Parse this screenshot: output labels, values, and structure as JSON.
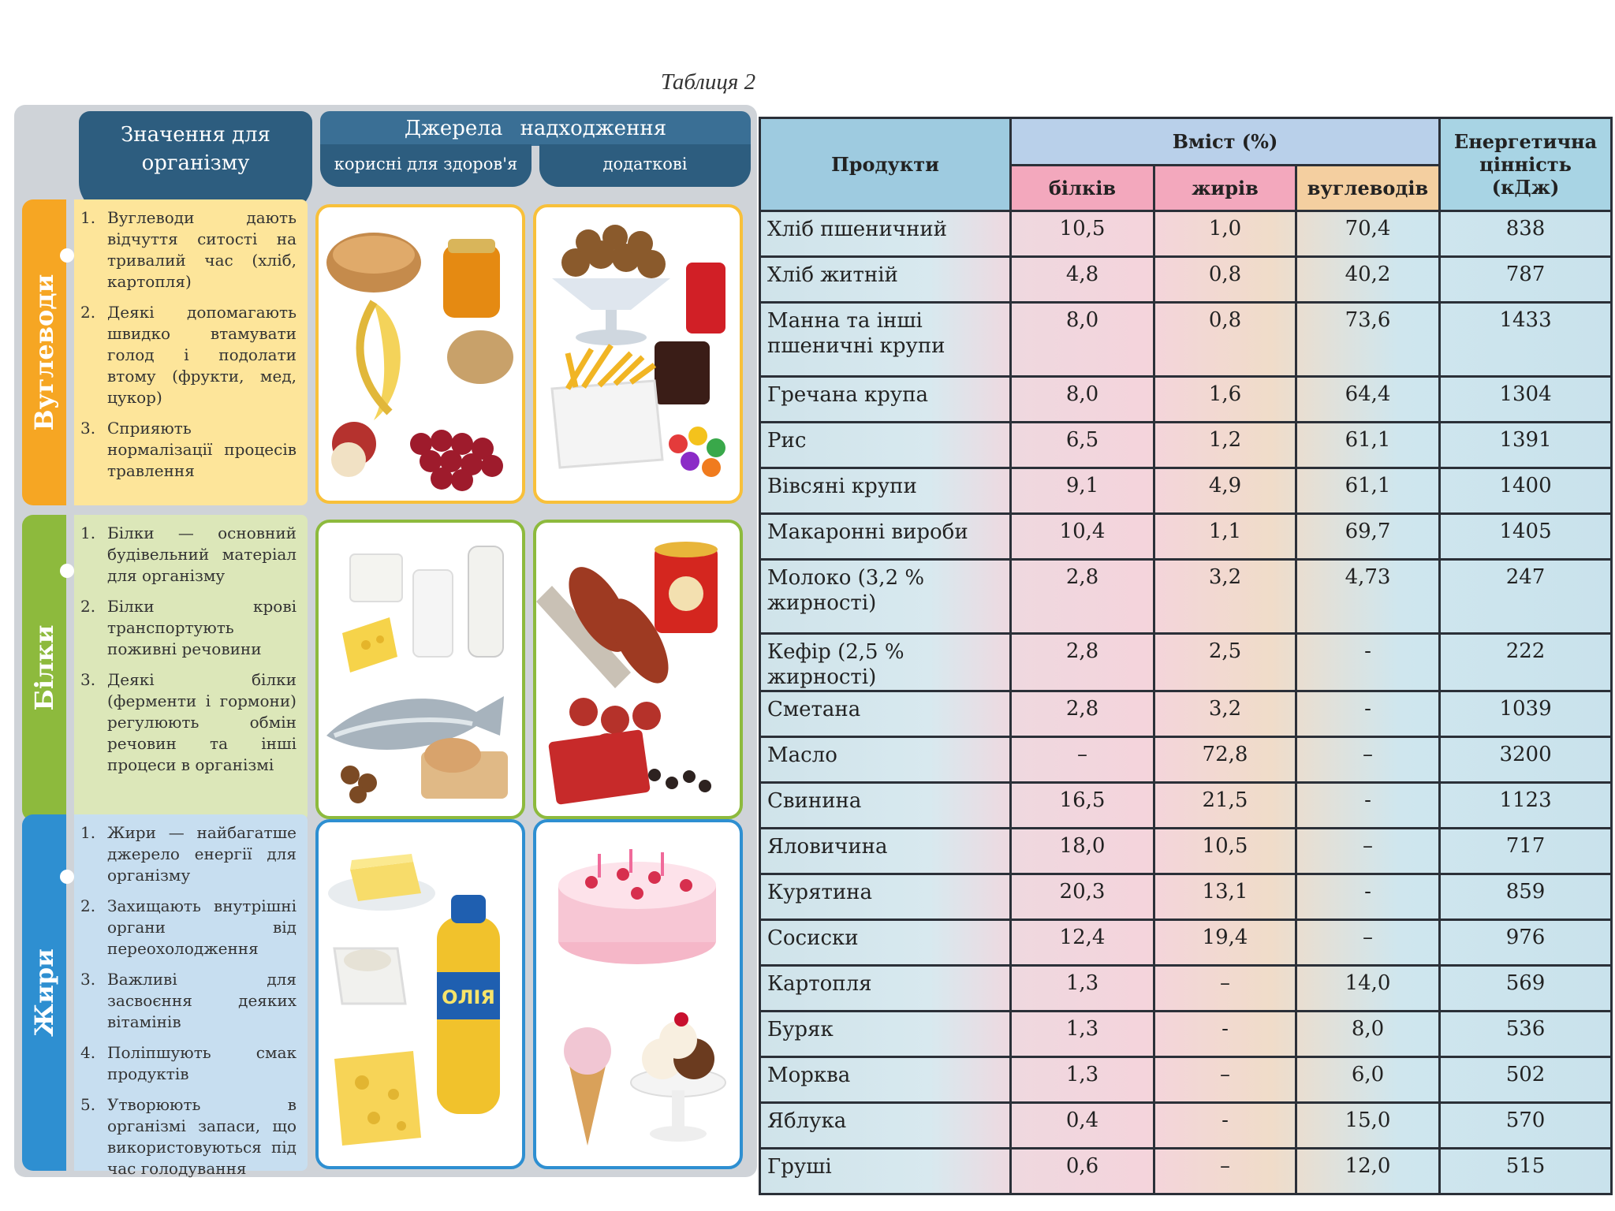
{
  "caption": "Таблиця 2",
  "left": {
    "header_meaning": "Значення для організму",
    "header_sources": "Джерела надходження",
    "header_useful": "корисні для здоров'я",
    "header_extra": "додаткові",
    "sections": {
      "carbs": {
        "title": "Вуглеводи",
        "items": [
          {
            "n": "1.",
            "t": "Вуглеводи дають відчуття ситості на тривалий час (хліб, картопля)"
          },
          {
            "n": "2.",
            "t": "Деякі допомагають швидко втамувати голод і подолати втому (фрукти, мед, цукор)"
          },
          {
            "n": "3.",
            "t": "Сприяють нормалізації процесів травлення"
          }
        ]
      },
      "protein": {
        "title": "Білки",
        "items": [
          {
            "n": "1.",
            "t": "Білки — основний будівельний матеріал для організму"
          },
          {
            "n": "2.",
            "t": "Білки крові транспортують поживні речовини"
          },
          {
            "n": "3.",
            "t": "Деякі білки (ферменти і гормони) регулюють обмін речовин та інші процеси в організмі"
          }
        ]
      },
      "fats": {
        "title": "Жири",
        "items": [
          {
            "n": "1.",
            "t": "Жири — найбагатше джерело енергії для організму"
          },
          {
            "n": "2.",
            "t": "Захищають внутрішні органи від переохолодження"
          },
          {
            "n": "3.",
            "t": "Важливі для засвоєння деяких вітамінів"
          },
          {
            "n": "4.",
            "t": "Поліпшують смак продуктів"
          },
          {
            "n": "5.",
            "t": "Утворюють в організмі запаси, що використовуються під час голодування"
          }
        ]
      }
    },
    "oil_label": "ОЛІЯ"
  },
  "table": {
    "col_products": "Продукти",
    "col_content": "Вміст (%)",
    "col_protein": "білків",
    "col_fats": "жирів",
    "col_carbs": "вуглеводів",
    "col_energy": "Енергетична цінність (кДж)",
    "rows": [
      {
        "product": "Хліб пшеничний",
        "protein": "10,5",
        "fats": "1,0",
        "carbs": "70,4",
        "energy": "838"
      },
      {
        "product": "Хліб житній",
        "protein": "4,8",
        "fats": "0,8",
        "carbs": "40,2",
        "energy": "787"
      },
      {
        "product": "Манна та інші пшеничні крупи",
        "protein": "8,0",
        "fats": "0,8",
        "carbs": "73,6",
        "energy": "1433"
      },
      {
        "product": "Гречана крупа",
        "protein": "8,0",
        "fats": "1,6",
        "carbs": "64,4",
        "energy": "1304"
      },
      {
        "product": "Рис",
        "protein": "6,5",
        "fats": "1,2",
        "carbs": "61,1",
        "energy": "1391"
      },
      {
        "product": "Вівсяні крупи",
        "protein": "9,1",
        "fats": "4,9",
        "carbs": "61,1",
        "energy": "1400"
      },
      {
        "product": "Макаронні вироби",
        "protein": "10,4",
        "fats": "1,1",
        "carbs": "69,7",
        "energy": "1405"
      },
      {
        "product": "Молоко (3,2 % жирності)",
        "protein": "2,8",
        "fats": "3,2",
        "carbs": "4,73",
        "energy": "247"
      },
      {
        "product": "Кефір (2,5 % жирності)",
        "protein": "2,8",
        "fats": "2,5",
        "carbs": "-",
        "energy": "222"
      },
      {
        "product": "Сметана",
        "protein": "2,8",
        "fats": "3,2",
        "carbs": "-",
        "energy": "1039"
      },
      {
        "product": "Масло",
        "protein": "–",
        "fats": "72,8",
        "carbs": "–",
        "energy": "3200"
      },
      {
        "product": "Свинина",
        "protein": "16,5",
        "fats": "21,5",
        "carbs": "-",
        "energy": "1123"
      },
      {
        "product": "Яловичина",
        "protein": "18,0",
        "fats": "10,5",
        "carbs": "–",
        "energy": "717"
      },
      {
        "product": "Курятина",
        "protein": "20,3",
        "fats": "13,1",
        "carbs": "-",
        "energy": "859"
      },
      {
        "product": "Сосиски",
        "protein": "12,4",
        "fats": "19,4",
        "carbs": "–",
        "energy": "976"
      },
      {
        "product": "Картопля",
        "protein": "1,3",
        "fats": "–",
        "carbs": "14,0",
        "energy": "569"
      },
      {
        "product": "Буряк",
        "protein": "1,3",
        "fats": "-",
        "carbs": "8,0",
        "energy": "536"
      },
      {
        "product": "Морква",
        "protein": "1,3",
        "fats": "–",
        "carbs": "6,0",
        "energy": "502"
      },
      {
        "product": "Яблука",
        "protein": "0,4",
        "fats": "-",
        "carbs": "15,0",
        "energy": "570"
      },
      {
        "product": "Груші",
        "protein": "0,6",
        "fats": "–",
        "carbs": "12,0",
        "energy": "515"
      }
    ]
  },
  "colors": {
    "carbs": "#f6a623",
    "protein": "#8dba3d",
    "fats": "#2e8fd1",
    "header": "#2d5d7f"
  }
}
